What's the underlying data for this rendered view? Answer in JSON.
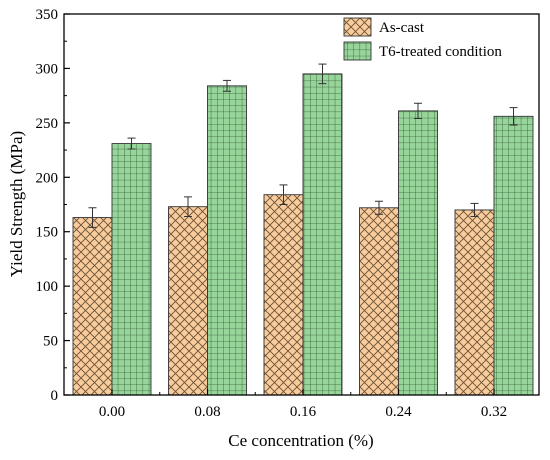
{
  "chart_data": {
    "type": "bar",
    "title": "",
    "xlabel": "Ce concentration (%)",
    "ylabel": "Yield Strength (MPa)",
    "categories": [
      "0.00",
      "0.08",
      "0.16",
      "0.24",
      "0.32"
    ],
    "ylim": [
      0,
      350
    ],
    "yticks": [
      0,
      50,
      100,
      150,
      200,
      250,
      300,
      350
    ],
    "grid": false,
    "legend_position": "top-right",
    "series": [
      {
        "name": "As-cast",
        "values": [
          163,
          173,
          184,
          172,
          170
        ],
        "errors": [
          9,
          9,
          9,
          6,
          6
        ],
        "color": "#f9cc9d",
        "pattern": "crosshatch-diagonal"
      },
      {
        "name": "T6-treated condition",
        "values": [
          231,
          284,
          295,
          261,
          256
        ],
        "errors": [
          5,
          5,
          9,
          7,
          8
        ],
        "color": "#98d59b",
        "pattern": "grid"
      }
    ]
  }
}
